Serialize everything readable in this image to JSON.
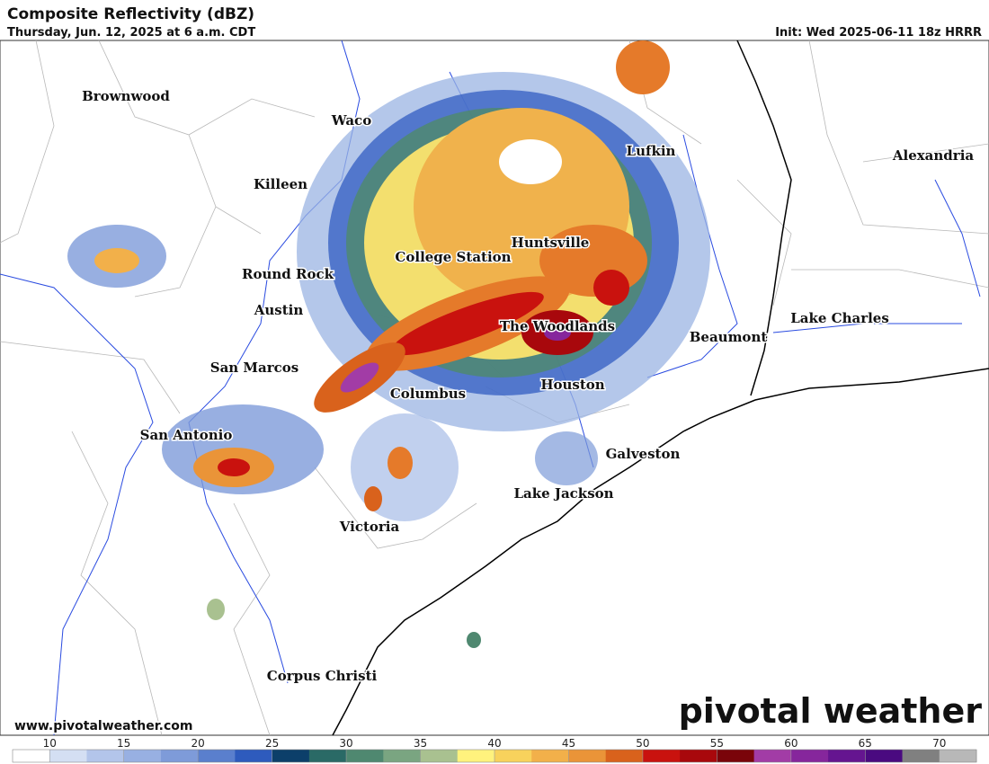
{
  "header": {
    "title": "Composite Reflectivity (dBZ)",
    "subtitle": "Thursday, Jun. 12, 2025 at 6 a.m. CDT",
    "init": "Init: Wed 2025-06-11 18z HRRR"
  },
  "cities": [
    "Brownwood",
    "Waco",
    "Killeen",
    "Lufkin",
    "Alexandria",
    "Huntsville",
    "College Station",
    "Round Rock",
    "Austin",
    "Lake Charles",
    "The Woodlands",
    "Beaumont",
    "San Marcos",
    "Houston",
    "Columbus",
    "San Antonio",
    "Galveston",
    "Lake Jackson",
    "Victoria",
    "Corpus Christi"
  ],
  "website": "www.pivotalweather.com",
  "logo": "pivotal weather",
  "colorbar": {
    "range": [
      7.5,
      72.5
    ],
    "ticks": [
      10,
      15,
      20,
      25,
      30,
      35,
      40,
      45,
      50,
      55,
      60,
      65,
      70
    ],
    "colors": [
      "#ffffff",
      "#d4dff3",
      "#b3c5ea",
      "#98b0e2",
      "#7e9bd9",
      "#5a7fcd",
      "#2e5bbd",
      "#0c3f6a",
      "#2a6a66",
      "#4f8870",
      "#7aa581",
      "#a9c190",
      "#fff27d",
      "#f8d25c",
      "#f2b04a",
      "#ea9438",
      "#d9621c",
      "#c9120e",
      "#a8080c",
      "#7a040a",
      "#a23ca6",
      "#86269c",
      "#651590",
      "#4a0a80",
      "#808080",
      "#b8b8b8"
    ]
  }
}
